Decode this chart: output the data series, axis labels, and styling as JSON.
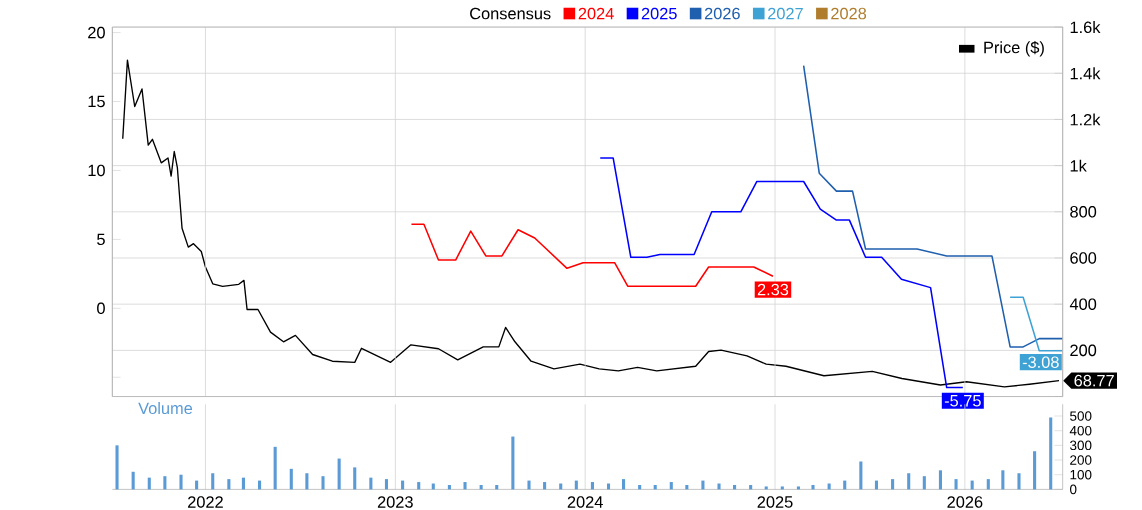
{
  "chart_data": [
    {
      "type": "line",
      "legend_title": "Consensus",
      "legend": "top",
      "grid": true,
      "tick_labels": "y",
      "xlim": [
        "2021-07-06",
        "2026-07-08"
      ],
      "xticks": [
        "2022",
        "2023",
        "2024",
        "2025",
        "2026"
      ],
      "ylim": [
        -6.4,
        20.4
      ],
      "yticks": [
        {
          "value": -5,
          "label": null
        },
        0,
        5,
        10,
        15,
        20
      ],
      "y2lim": [
        0,
        1600
      ],
      "y2ticks": [
        {
          "value": 0,
          "label": null
        },
        200,
        400,
        600,
        800,
        {
          "value": 1000,
          "label": "1k"
        },
        {
          "value": 1200,
          "label": "1.2k"
        },
        {
          "value": 1400,
          "label": "1.4k"
        },
        {
          "value": 1600,
          "label": "1.6k"
        }
      ],
      "series": [
        {
          "name": "2024",
          "color": "#ff0000",
          "x": [
            "2023-02-01",
            "2023-02-25",
            "2023-03-25",
            "2023-04-27",
            "2023-05-26",
            "2023-06-24",
            "2023-07-25",
            "2023-08-25",
            "2023-09-26",
            "2023-11-27",
            "2023-12-28",
            "2024-02-27",
            "2024-03-23",
            "2024-08-01",
            "2024-08-26",
            "2024-11-21",
            "2024-12-28"
          ],
          "values": [
            6.1,
            6.1,
            3.5,
            3.5,
            5.6,
            3.8,
            3.8,
            5.7,
            5.1,
            2.9,
            3.3,
            3.3,
            1.6,
            1.6,
            3.0,
            3.0,
            2.33
          ],
          "value_labels": [
            null,
            null,
            null,
            null,
            null,
            null,
            null,
            null,
            null,
            null,
            null,
            null,
            null,
            null,
            null,
            null,
            "2.33"
          ]
        },
        {
          "name": "2025",
          "color": "#0000ff",
          "x": [
            "2024-01-30",
            "2024-02-24",
            "2024-03-29",
            "2024-04-29",
            "2024-05-24",
            "2024-07-29",
            "2024-09-01",
            "2024-10-27",
            "2024-11-27",
            "2025-02-25",
            "2025-03-29",
            "2025-04-29",
            "2025-05-24",
            "2025-06-24",
            "2025-07-25",
            "2025-09-01",
            "2025-10-27",
            "2025-11-27",
            "2025-12-28"
          ],
          "values": [
            10.9,
            10.9,
            3.7,
            3.7,
            3.9,
            3.9,
            7.0,
            7.0,
            9.2,
            9.2,
            7.2,
            6.4,
            6.4,
            3.7,
            3.7,
            2.1,
            1.5,
            -5.75,
            -5.75
          ],
          "value_labels": [
            null,
            null,
            null,
            null,
            null,
            null,
            null,
            null,
            null,
            null,
            null,
            null,
            null,
            null,
            null,
            null,
            null,
            null,
            "-5.75"
          ]
        },
        {
          "name": "2026",
          "color": "#1f5fae",
          "x": [
            "2025-02-25",
            "2025-03-27",
            "2025-04-29",
            "2025-05-30",
            "2025-06-24",
            "2025-10-01",
            "2025-11-27",
            "2026-02-22",
            "2026-03-29",
            "2026-04-23",
            "2026-05-24",
            "2026-07-07"
          ],
          "values": [
            17.6,
            9.8,
            8.5,
            8.5,
            4.3,
            4.3,
            3.8,
            3.8,
            -2.8,
            -2.8,
            -2.2,
            -2.2
          ]
        },
        {
          "name": "2027",
          "color": "#3fa2d4",
          "x": [
            "2026-03-29",
            "2026-04-23",
            "2026-05-24",
            "2026-07-07"
          ],
          "values": [
            0.8,
            0.8,
            -3.08,
            -3.08
          ],
          "value_labels": [
            null,
            null,
            null,
            "-3.08"
          ]
        },
        {
          "name": "2028",
          "color": "#b07d2c"
        },
        {
          "name": "Price ($)",
          "color": "#000000",
          "axis": "y2",
          "x": [
            "2021-07-26",
            "2021-08-04",
            "2021-08-18",
            "2021-09-01",
            "2021-09-13",
            "2021-09-21",
            "2021-10-08",
            "2021-10-21",
            "2021-10-27",
            "2021-11-02",
            "2021-11-08",
            "2021-11-17",
            "2021-11-29",
            "2021-12-09",
            "2021-12-24",
            "2022-01-01",
            "2022-01-15",
            "2022-02-03",
            "2022-03-06",
            "2022-03-16",
            "2022-03-22",
            "2022-04-12",
            "2022-05-06",
            "2022-05-31",
            "2022-06-23",
            "2022-07-26",
            "2022-09-02",
            "2022-10-15",
            "2022-10-28",
            "2022-12-23",
            "2023-01-31",
            "2023-03-25",
            "2023-05-01",
            "2023-06-19",
            "2023-07-19",
            "2023-08-01",
            "2023-08-19",
            "2023-09-19",
            "2023-11-02",
            "2023-12-22",
            "2024-01-28",
            "2024-03-05",
            "2024-04-11",
            "2024-05-18",
            "2024-08-01",
            "2024-08-26",
            "2024-09-19",
            "2024-11-08",
            "2024-12-15",
            "2025-01-22",
            "2025-04-05",
            "2025-07-07",
            "2025-09-02",
            "2025-11-15",
            "2026-01-04",
            "2026-03-18",
            "2026-05-05",
            "2026-07-01"
          ],
          "values": [
            1116,
            1457,
            1256,
            1332,
            1089,
            1114,
            1012,
            1033,
            955,
            1061,
            991,
            729,
            647,
            662,
            628,
            561,
            488,
            477,
            486,
            503,
            377,
            377,
            279,
            237,
            265,
            182,
            153,
            148,
            209,
            148,
            224,
            207,
            159,
            215,
            215,
            299,
            237,
            153,
            120,
            140,
            120,
            111,
            126,
            111,
            131,
            195,
            201,
            176,
            140,
            131,
            90,
            109,
            78,
            50,
            64,
            42,
            53,
            68.77
          ],
          "value_labels": [
            null,
            null,
            null,
            null,
            null,
            null,
            null,
            null,
            null,
            null,
            null,
            null,
            null,
            null,
            null,
            null,
            null,
            null,
            null,
            null,
            null,
            null,
            null,
            null,
            null,
            null,
            null,
            null,
            null,
            null,
            null,
            null,
            null,
            null,
            null,
            null,
            null,
            null,
            null,
            null,
            null,
            null,
            null,
            null,
            null,
            null,
            null,
            null,
            null,
            null,
            null,
            null,
            null,
            null,
            null,
            null,
            null,
            "68.77"
          ]
        }
      ]
    },
    {
      "type": "bar",
      "title": "Volume",
      "grid": "x",
      "xlim": [
        "2021-07-06",
        "2026-07-08"
      ],
      "xticks": [
        "2022",
        "2023",
        "2024",
        "2025",
        "2026"
      ],
      "ylim": [
        0,
        580
      ],
      "yticks": [
        0,
        100,
        200,
        300,
        400,
        500
      ],
      "color": "#5b9bd5",
      "x": [
        "2021-07-15",
        "2021-08-15",
        "2021-09-15",
        "2021-10-15",
        "2021-11-15",
        "2021-12-15",
        "2022-01-15",
        "2022-02-15",
        "2022-03-15",
        "2022-04-15",
        "2022-05-15",
        "2022-06-15",
        "2022-07-15",
        "2022-08-15",
        "2022-09-15",
        "2022-10-15",
        "2022-11-15",
        "2022-12-15",
        "2023-01-15",
        "2023-02-15",
        "2023-03-15",
        "2023-04-15",
        "2023-05-15",
        "2023-06-15",
        "2023-07-15",
        "2023-08-15",
        "2023-09-15",
        "2023-10-15",
        "2023-11-15",
        "2023-12-15",
        "2024-01-15",
        "2024-02-15",
        "2024-03-15",
        "2024-04-15",
        "2024-05-15",
        "2024-06-15",
        "2024-07-15",
        "2024-08-15",
        "2024-09-15",
        "2024-10-15",
        "2024-11-15",
        "2024-12-15",
        "2025-01-15",
        "2025-02-15",
        "2025-03-15",
        "2025-04-15",
        "2025-05-15",
        "2025-06-15",
        "2025-07-15",
        "2025-08-15",
        "2025-09-15",
        "2025-10-15",
        "2025-11-15",
        "2025-12-15",
        "2026-01-15",
        "2026-02-15",
        "2026-03-15",
        "2026-04-15",
        "2026-05-15",
        "2026-06-15"
      ],
      "values": [
        300,
        120,
        80,
        90,
        100,
        60,
        110,
        70,
        80,
        60,
        290,
        140,
        110,
        90,
        210,
        150,
        80,
        70,
        60,
        50,
        40,
        30,
        50,
        30,
        30,
        360,
        60,
        50,
        40,
        60,
        50,
        40,
        70,
        30,
        30,
        50,
        30,
        60,
        40,
        30,
        30,
        20,
        20,
        20,
        30,
        40,
        60,
        190,
        60,
        70,
        110,
        90,
        130,
        70,
        60,
        70,
        130,
        110,
        260,
        490
      ]
    }
  ]
}
